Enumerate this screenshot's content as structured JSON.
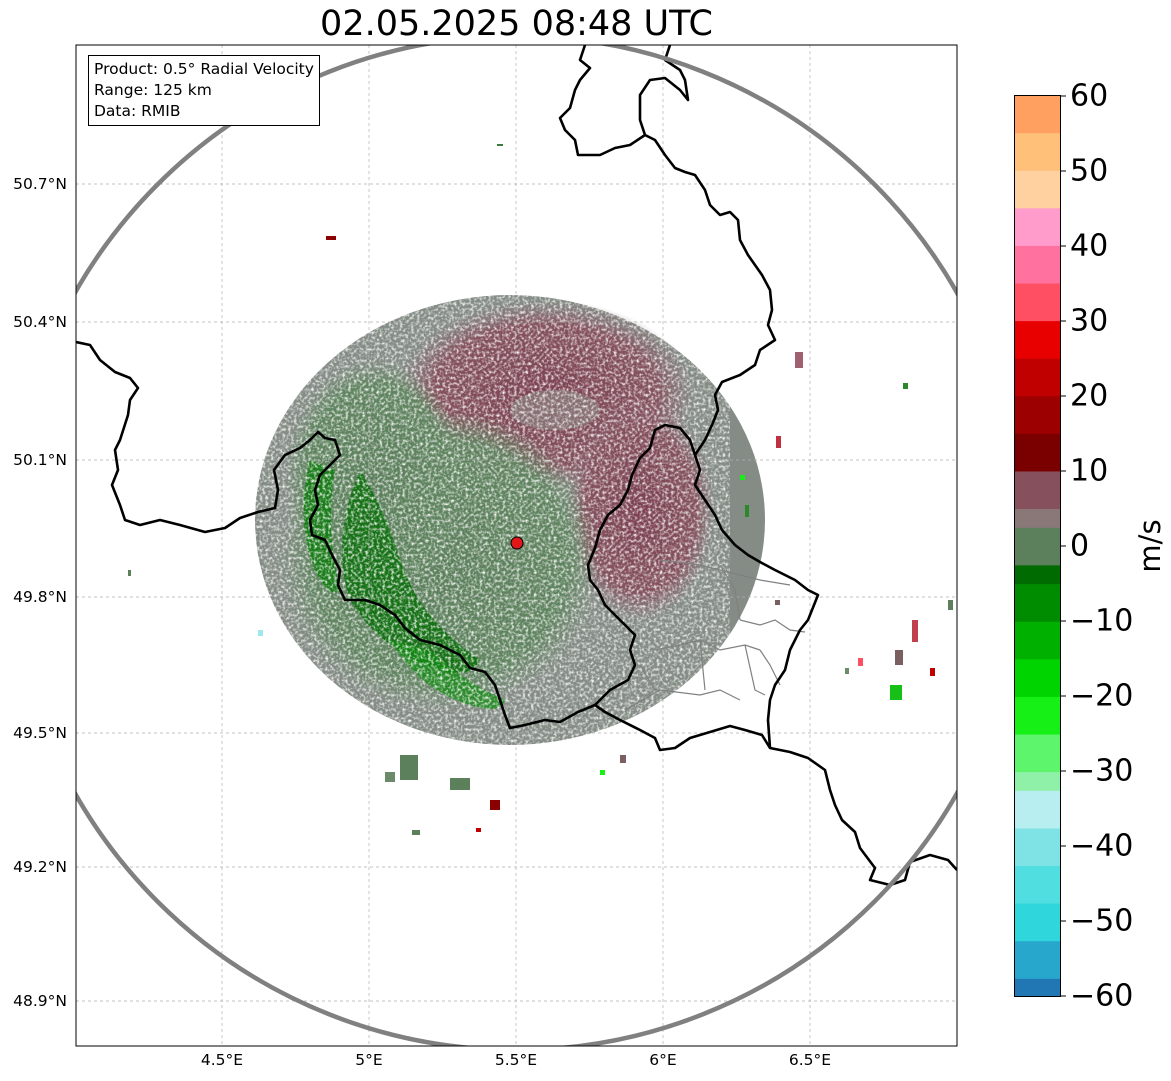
{
  "title": "02.05.2025 08:48 UTC",
  "info": {
    "product": "Product: 0.5° Radial Velocity",
    "range": "Range: 125 km",
    "data": "Data: RMIB"
  },
  "lat_ticks": [
    "50.7°N",
    "50.4°N",
    "50.1°N",
    "49.8°N",
    "49.5°N",
    "49.2°N",
    "48.9°N"
  ],
  "lon_ticks": [
    "4.5°E",
    "5°E",
    "5.5°E",
    "6°E",
    "6.5°E"
  ],
  "colorbar": {
    "label": "m/s",
    "ticks": [
      "60",
      "50",
      "40",
      "30",
      "20",
      "10",
      "0",
      "−10",
      "−20",
      "−30",
      "−40",
      "−50",
      "−60"
    ],
    "range": [
      -60,
      60
    ],
    "colors": {
      "neg_60": "#2077b4",
      "neg_55": "#27a7cc",
      "neg_50": "#2fd6dc",
      "neg_45": "#50dee0",
      "neg_40": "#7fe3e6",
      "neg_35": "#b8eef0",
      "neg_32": "#8ff0a8",
      "neg_30": "#5cf56b",
      "neg_25": "#16f016",
      "neg_20": "#00d400",
      "neg_15": "#00b000",
      "neg_10": "#008c00",
      "neg_5": "#006b00",
      "zero_low": "#5c7f5c",
      "zero_high": "#8a7878",
      "pos_5": "#86505d",
      "pos_10": "#7a0000",
      "pos_15": "#9c0000",
      "pos_20": "#c00000",
      "pos_25": "#e80000",
      "pos_30": "#ff4f63",
      "pos_35": "#ff72a0",
      "pos_40": "#ff9ccc",
      "pos_45": "#ffd0a0",
      "pos_50": "#ffc07a",
      "pos_60": "#ffa060"
    }
  },
  "radar": {
    "site": "RMIB radar",
    "lat": 49.914,
    "lon": 5.506,
    "range_km": 125,
    "site_color": "#e0181a",
    "ring_color": "#808080"
  },
  "map_extent": {
    "lon": [
      4.0,
      7.0
    ],
    "lat": [
      48.8,
      51.0
    ]
  }
}
